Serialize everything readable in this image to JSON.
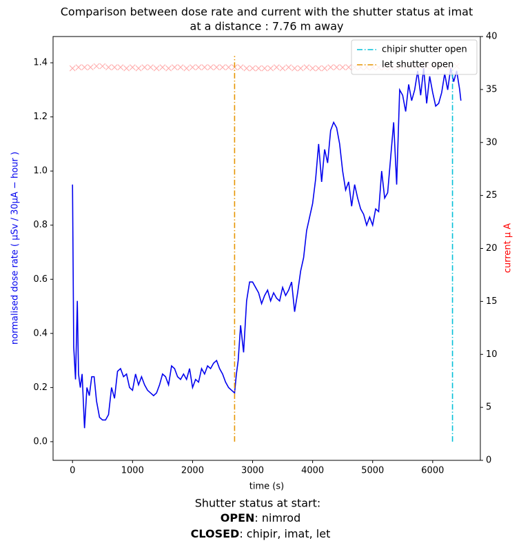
{
  "chart_data": {
    "type": "line",
    "title": "Comparison between dose rate and current with the shutter status at imat",
    "subtitle": "at a distance : 7.76 m away",
    "x_label": "time (s)",
    "y_label": "normalised dose rate ( μSv / 30μA − hour )",
    "y2_label": "current μ A",
    "xlim": [
      -324,
      6794
    ],
    "xticks": [
      0,
      1000,
      2000,
      3000,
      4000,
      5000,
      6000
    ],
    "ylim": [
      -0.069,
      1.497
    ],
    "yticks": [
      {
        "value": 0,
        "label": "0.0"
      },
      0.2,
      0.4,
      0.6,
      0.8,
      {
        "value": 1,
        "label": "1.0"
      },
      1.2,
      1.4
    ],
    "y2lim": [
      0,
      40
    ],
    "y2ticks": [
      0,
      5,
      10,
      15,
      20,
      25,
      30,
      35,
      40
    ],
    "legend": "upper right",
    "series": [
      {
        "color": "#0000ee",
        "axis": "y",
        "x": [
          0,
          20,
          50,
          80,
          100,
          130,
          160,
          200,
          240,
          280,
          320,
          360,
          400,
          450,
          500,
          550,
          600,
          650,
          700,
          750,
          800,
          850,
          900,
          950,
          1000,
          1050,
          1100,
          1150,
          1200,
          1250,
          1300,
          1350,
          1400,
          1450,
          1500,
          1550,
          1600,
          1650,
          1700,
          1750,
          1800,
          1850,
          1900,
          1950,
          2000,
          2050,
          2100,
          2150,
          2200,
          2250,
          2300,
          2350,
          2400,
          2450,
          2500,
          2550,
          2600,
          2650,
          2700,
          2730,
          2760,
          2800,
          2850,
          2900,
          2950,
          3000,
          3050,
          3100,
          3150,
          3200,
          3250,
          3300,
          3350,
          3400,
          3450,
          3500,
          3550,
          3600,
          3650,
          3700,
          3750,
          3800,
          3850,
          3900,
          3950,
          4000,
          4050,
          4100,
          4150,
          4200,
          4250,
          4300,
          4350,
          4400,
          4450,
          4500,
          4550,
          4600,
          4650,
          4700,
          4750,
          4800,
          4850,
          4900,
          4950,
          5000,
          5050,
          5100,
          5150,
          5200,
          5250,
          5300,
          5350,
          5400,
          5450,
          5500,
          5550,
          5600,
          5650,
          5700,
          5750,
          5800,
          5850,
          5900,
          5950,
          6000,
          6050,
          6100,
          6150,
          6200,
          6250,
          6300,
          6350,
          6400,
          6450,
          6470
        ],
        "values": [
          0.95,
          0.35,
          0.23,
          0.52,
          0.25,
          0.2,
          0.25,
          0.05,
          0.2,
          0.17,
          0.24,
          0.24,
          0.15,
          0.09,
          0.08,
          0.08,
          0.1,
          0.2,
          0.16,
          0.26,
          0.27,
          0.24,
          0.25,
          0.2,
          0.19,
          0.25,
          0.21,
          0.24,
          0.21,
          0.19,
          0.18,
          0.17,
          0.18,
          0.21,
          0.25,
          0.24,
          0.21,
          0.28,
          0.27,
          0.24,
          0.23,
          0.25,
          0.23,
          0.27,
          0.2,
          0.23,
          0.22,
          0.27,
          0.25,
          0.28,
          0.27,
          0.29,
          0.3,
          0.27,
          0.25,
          0.22,
          0.2,
          0.19,
          0.18,
          0.25,
          0.3,
          0.43,
          0.33,
          0.52,
          0.59,
          0.59,
          0.57,
          0.55,
          0.51,
          0.54,
          0.56,
          0.52,
          0.55,
          0.53,
          0.52,
          0.57,
          0.54,
          0.56,
          0.59,
          0.48,
          0.55,
          0.63,
          0.68,
          0.78,
          0.83,
          0.88,
          0.97,
          1.1,
          0.96,
          1.08,
          1.03,
          1.15,
          1.18,
          1.16,
          1.1,
          1.0,
          0.93,
          0.96,
          0.87,
          0.95,
          0.9,
          0.86,
          0.84,
          0.8,
          0.83,
          0.8,
          0.86,
          0.85,
          1.0,
          0.9,
          0.92,
          1.05,
          1.18,
          0.95,
          1.3,
          1.28,
          1.22,
          1.32,
          1.26,
          1.3,
          1.37,
          1.28,
          1.38,
          1.25,
          1.35,
          1.29,
          1.24,
          1.25,
          1.29,
          1.36,
          1.3,
          1.38,
          1.33,
          1.37,
          1.3,
          1.26
        ]
      },
      {
        "type": "scatter",
        "color": "#ff0000",
        "axis": "y2",
        "x": [
          0,
          100,
          200,
          300,
          400,
          500,
          600,
          700,
          800,
          900,
          1000,
          1100,
          1200,
          1300,
          1400,
          1500,
          1600,
          1700,
          1800,
          1900,
          2000,
          2100,
          2200,
          2300,
          2400,
          2500,
          2600,
          2700,
          2800,
          2900,
          3000,
          3100,
          3200,
          3300,
          3400,
          3500,
          3600,
          3700,
          3800,
          3900,
          4000,
          4100,
          4200,
          4300,
          4400,
          4500,
          4600,
          4700,
          4800,
          4900,
          5000,
          5100,
          5200,
          5300,
          5400,
          5500,
          5600,
          5700,
          5800,
          5900,
          6000,
          6100,
          6200,
          6300,
          6400
        ],
        "values": [
          37.0,
          37.1,
          37.1,
          37.1,
          37.2,
          37.2,
          37.1,
          37.1,
          37.1,
          37.0,
          37.1,
          37.0,
          37.1,
          37.1,
          37.0,
          37.1,
          37.0,
          37.1,
          37.1,
          37.0,
          37.1,
          37.1,
          37.1,
          37.1,
          37.1,
          37.1,
          37.1,
          37.1,
          37.1,
          37.0,
          37.0,
          37.0,
          37.0,
          37.0,
          37.1,
          37.0,
          37.1,
          37.0,
          37.0,
          37.1,
          37.0,
          37.0,
          37.0,
          37.1,
          37.1,
          37.1,
          37.1,
          37.1,
          37.1,
          37.1,
          37.1,
          37.1,
          37.1,
          37.1,
          37.1,
          37.2,
          37.2,
          37.2,
          37.2,
          37.2,
          37.2,
          37.2,
          37.2,
          37.1,
          37.2
        ]
      }
    ],
    "vlines": [
      {
        "name": "chipir shutter open",
        "color": "#00bfd8",
        "x": 6330,
        "ymin": 0,
        "ymax": 1.39
      },
      {
        "name": "let shutter open",
        "color": "#e69500",
        "x": 2700,
        "ymin": 0,
        "ymax": 1.425
      }
    ],
    "footer": {
      "heading": "Shutter status at start:",
      "lines": [
        {
          "label": "OPEN",
          "text": ":  nimrod"
        },
        {
          "label": "CLOSED",
          "text": ":  chipir, imat, let"
        }
      ]
    }
  }
}
